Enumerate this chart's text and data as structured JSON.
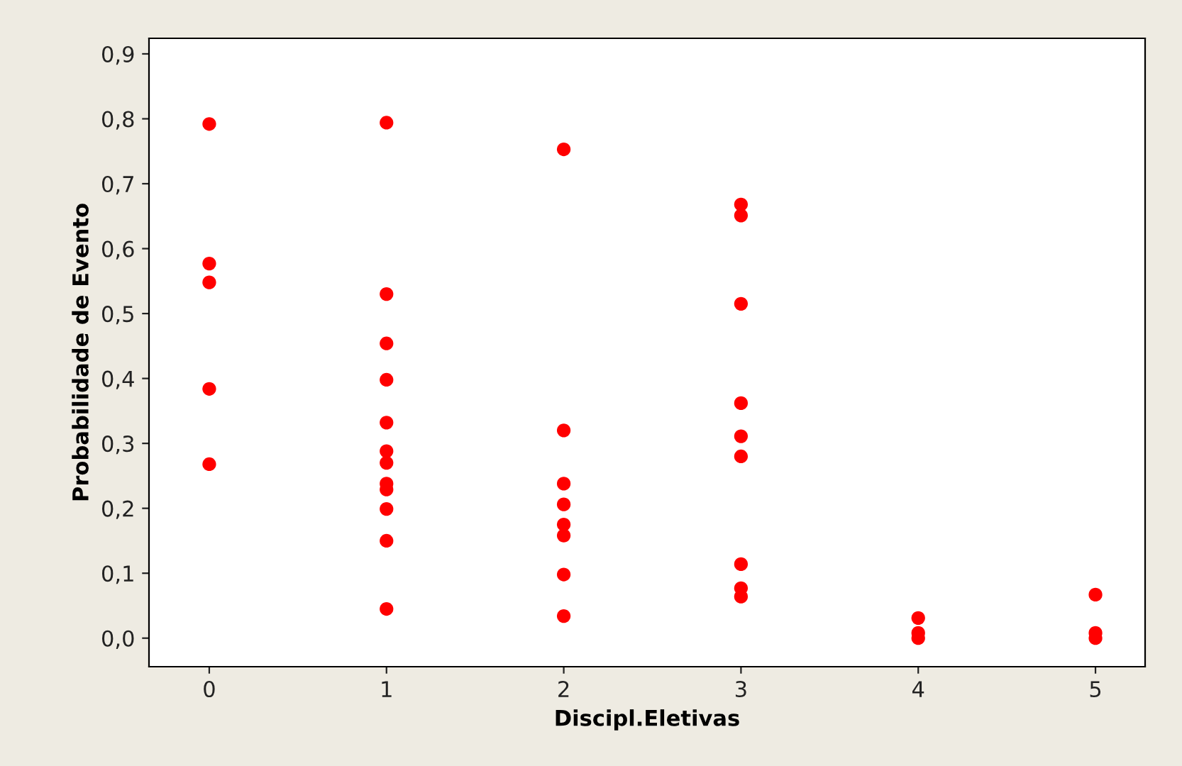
{
  "chart_data": {
    "type": "scatter",
    "xlabel": "Discipl.Eletivas",
    "ylabel": "Probabilidade de Evento",
    "x": [
      0,
      0,
      0,
      0,
      0,
      1,
      1,
      1,
      1,
      1,
      1,
      1,
      1,
      1,
      1,
      1,
      1,
      2,
      2,
      2,
      2,
      2,
      2,
      2,
      2,
      3,
      3,
      3,
      3,
      3,
      3,
      3,
      3,
      3,
      4,
      4,
      4,
      5,
      5,
      5
    ],
    "series": [
      {
        "color": "#ff0000",
        "values": [
          0.792,
          0.577,
          0.548,
          0.384,
          0.268,
          0.794,
          0.53,
          0.454,
          0.398,
          0.332,
          0.288,
          0.27,
          0.238,
          0.229,
          0.199,
          0.15,
          0.045,
          0.753,
          0.32,
          0.238,
          0.206,
          0.175,
          0.158,
          0.098,
          0.034,
          0.668,
          0.651,
          0.515,
          0.362,
          0.311,
          0.28,
          0.114,
          0.077,
          0.064,
          0.031,
          0.008,
          0.0,
          0.067,
          0.008,
          0.0
        ]
      }
    ],
    "marker": "circle",
    "grid": false,
    "legend": false,
    "xlim": [
      -0.34,
      5.28
    ],
    "xticks": [
      0,
      1,
      2,
      3,
      4,
      5
    ],
    "ylim": [
      -0.044,
      0.924
    ],
    "yticks": [
      {
        "value": 0.0,
        "label": "0,0"
      },
      {
        "value": 0.1,
        "label": "0,1"
      },
      {
        "value": 0.2,
        "label": "0,2"
      },
      {
        "value": 0.3,
        "label": "0,3"
      },
      {
        "value": 0.4,
        "label": "0,4"
      },
      {
        "value": 0.5,
        "label": "0,5"
      },
      {
        "value": 0.6,
        "label": "0,6"
      },
      {
        "value": 0.7,
        "label": "0,7"
      },
      {
        "value": 0.8,
        "label": "0,8"
      },
      {
        "value": 0.9,
        "label": "0,9"
      }
    ]
  }
}
